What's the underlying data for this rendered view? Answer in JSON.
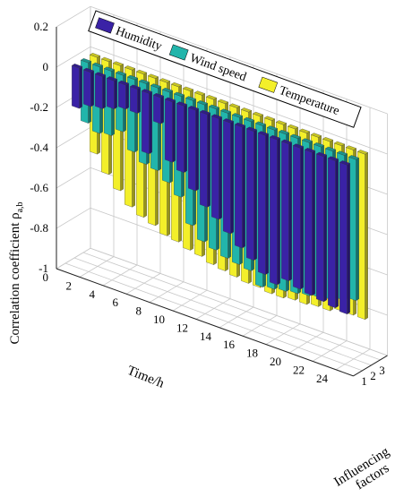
{
  "chart_data": {
    "type": "bar3d",
    "ylabel": "Correlation coefficient ρ",
    "ylabel_subscript": "a,b",
    "xlabel": "Time/h",
    "zlabel": "Influencing factors",
    "xlabel_zaxis_line2": "factors",
    "zlabel_line1": "Influencing",
    "ylim": [
      -1,
      0.2
    ],
    "y_ticks": [
      "0.2",
      "0",
      "-0.2",
      "-0.4",
      "-0.6",
      "-0.8",
      "-1"
    ],
    "x_ticks": [
      "0",
      "2",
      "4",
      "6",
      "8",
      "10",
      "12",
      "14",
      "16",
      "18",
      "20",
      "22",
      "24"
    ],
    "z_ticks": [
      "1",
      "2",
      "3"
    ],
    "legend_position": "top-right",
    "legend_labels": [
      "Humidity",
      "Wind speed",
      "Temperature"
    ],
    "colors": [
      "#3a22a6",
      "#22b5ab",
      "#f3ef2a"
    ],
    "series": [
      {
        "name": "Humidity",
        "values": [
          -0.2,
          -0.17,
          -0.16,
          -0.14,
          -0.12,
          -0.12,
          -0.3,
          -0.13,
          -0.3,
          -0.33,
          -0.4,
          -0.46,
          -0.5,
          -0.55,
          -0.6,
          -0.64,
          -0.69,
          -0.72,
          -0.68,
          -0.7,
          -0.71,
          -0.72,
          -0.73,
          -0.74
        ]
      },
      {
        "name": "Wind speed",
        "values": [
          -0.3,
          -0.33,
          -0.32,
          -0.28,
          -0.36,
          -0.4,
          -0.41,
          -0.45,
          -0.5,
          -0.62,
          -0.68,
          -0.7,
          -0.72,
          -0.73,
          -0.74,
          -0.8,
          -0.79,
          -0.78,
          -0.77,
          -0.76,
          -0.75,
          -0.74,
          -0.72,
          -0.7
        ]
      },
      {
        "name": "Temperature",
        "values": [
          -0.48,
          -0.56,
          -0.62,
          -0.68,
          -0.71,
          -0.73,
          -0.76,
          -0.77,
          -0.79,
          -0.8,
          -0.82,
          -0.83,
          -0.84,
          -0.85,
          -0.85,
          -0.86,
          -0.86,
          -0.85,
          -0.85,
          -0.84,
          -0.84,
          -0.82,
          -0.82,
          -0.82
        ]
      }
    ]
  }
}
